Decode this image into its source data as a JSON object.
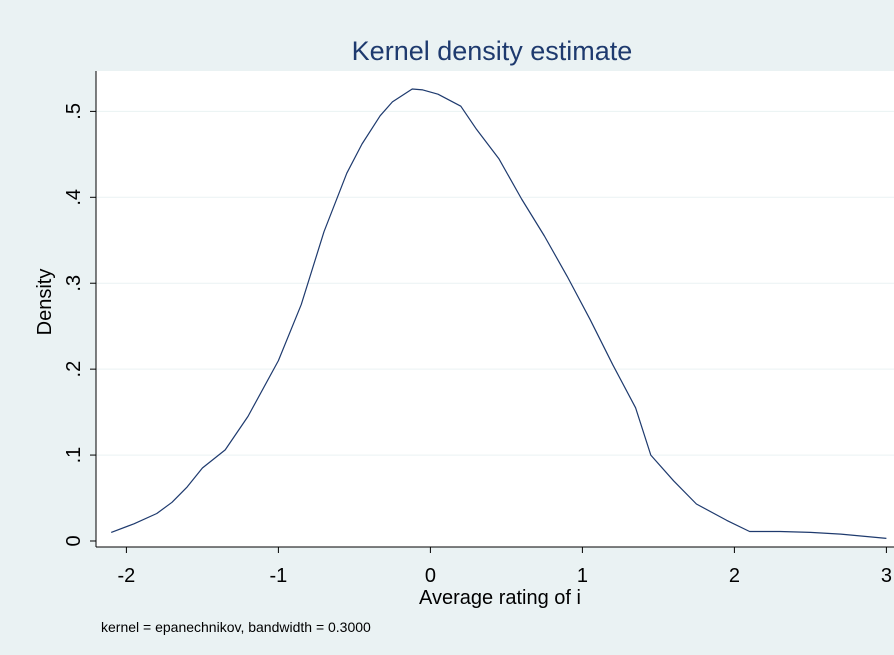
{
  "chart_data": {
    "type": "line",
    "title": "Kernel density estimate",
    "xlabel": "Average rating of i",
    "ylabel": "Density",
    "note": "kernel = epanechnikov, bandwidth = 0.3000",
    "xlim": [
      -2.2,
      3.05
    ],
    "ylim": [
      -0.007,
      0.547
    ],
    "x_ticks": [
      -2,
      -1,
      0,
      1,
      2,
      3
    ],
    "x_tick_labels": [
      "-2",
      "-1",
      "0",
      "1",
      "2",
      "3"
    ],
    "y_ticks": [
      0,
      0.1,
      0.2,
      0.3,
      0.4,
      0.5
    ],
    "y_tick_labels": [
      "0",
      ".1",
      ".2",
      ".3",
      ".4",
      ".5"
    ],
    "grid": true,
    "series": [
      {
        "x": [
          -2.1,
          -1.95,
          -1.8,
          -1.7,
          -1.6,
          -1.5,
          -1.35,
          -1.2,
          -1.0,
          -0.85,
          -0.7,
          -0.55,
          -0.45,
          -0.33,
          -0.25,
          -0.12,
          -0.05,
          0.05,
          0.2,
          0.3,
          0.45,
          0.6,
          0.75,
          0.9,
          1.05,
          1.2,
          1.35,
          1.45,
          1.6,
          1.75,
          1.95,
          2.1,
          2.3,
          2.5,
          2.7,
          3.0
        ],
        "y": [
          0.01,
          0.02,
          0.032,
          0.045,
          0.063,
          0.085,
          0.106,
          0.145,
          0.21,
          0.275,
          0.36,
          0.428,
          0.462,
          0.495,
          0.511,
          0.526,
          0.525,
          0.52,
          0.506,
          0.48,
          0.445,
          0.398,
          0.355,
          0.308,
          0.258,
          0.205,
          0.155,
          0.1,
          0.07,
          0.043,
          0.024,
          0.011,
          0.011,
          0.01,
          0.008,
          0.003
        ]
      }
    ],
    "colors": {
      "page_background": "#eaf2f3",
      "plot_background": "#ffffff",
      "line": "#1e3a6e",
      "title": "#1e3a6e",
      "grid": "#eaf2f3",
      "axis": "#000000"
    }
  }
}
